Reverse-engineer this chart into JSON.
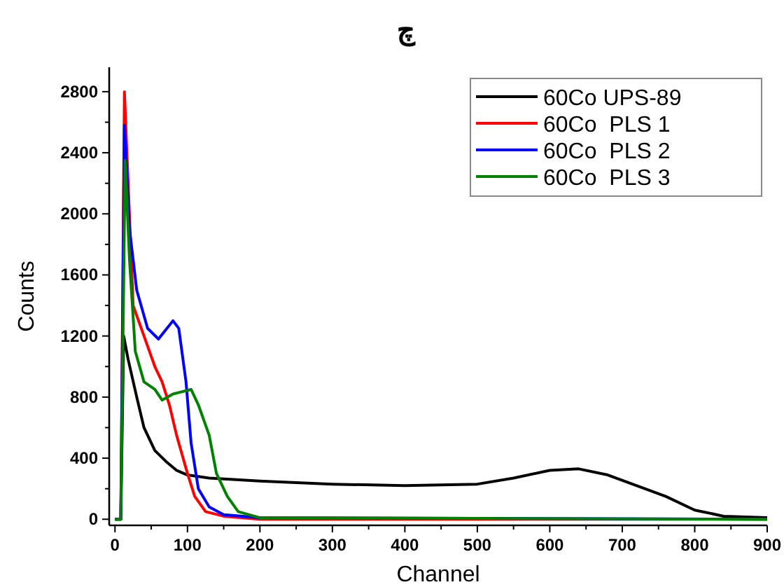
{
  "chart_data": {
    "type": "line",
    "title": "چ",
    "xlabel": "Channel",
    "ylabel": "Counts",
    "xlim": [
      -8,
      900
    ],
    "ylim": [
      -40,
      2960
    ],
    "xticks": [
      0,
      {
        "value": 50,
        "label": null
      },
      100,
      {
        "value": 150,
        "label": null
      },
      200,
      {
        "value": 250,
        "label": null
      },
      300,
      {
        "value": 350,
        "label": null
      },
      400,
      {
        "value": 450,
        "label": null
      },
      500,
      {
        "value": 550,
        "label": null
      },
      600,
      {
        "value": 650,
        "label": null
      },
      700,
      {
        "value": 750,
        "label": null
      },
      800,
      {
        "value": 850,
        "label": null
      },
      900
    ],
    "yticks": [
      0,
      {
        "value": 200,
        "label": null
      },
      400,
      {
        "value": 600,
        "label": null
      },
      800,
      {
        "value": 1000,
        "label": null
      },
      1200,
      {
        "value": 1400,
        "label": null
      },
      1600,
      {
        "value": 1800,
        "label": null
      },
      2000,
      {
        "value": 2200,
        "label": null
      },
      2400,
      {
        "value": 2600,
        "label": null
      },
      2800
    ],
    "grid": false,
    "legend": "top right",
    "marker": "none",
    "line_style": "solid",
    "series": [
      {
        "name": "60Co UPS-89",
        "color": "#000000",
        "x": [
          0,
          8,
          12,
          18,
          30,
          40,
          55,
          70,
          85,
          100,
          130,
          200,
          300,
          400,
          500,
          550,
          600,
          640,
          680,
          720,
          760,
          800,
          840,
          900
        ],
        "values": [
          0,
          0,
          1200,
          1050,
          800,
          600,
          450,
          380,
          320,
          290,
          270,
          250,
          230,
          220,
          230,
          270,
          320,
          330,
          290,
          220,
          150,
          60,
          20,
          10
        ]
      },
      {
        "name": "60Co  PLS 1",
        "color": "#ff0000",
        "x": [
          0,
          8,
          13,
          25,
          40,
          55,
          65,
          75,
          85,
          100,
          110,
          125,
          150,
          200,
          900
        ],
        "values": [
          0,
          0,
          2800,
          1400,
          1200,
          1000,
          900,
          750,
          550,
          300,
          150,
          50,
          20,
          0,
          0
        ]
      },
      {
        "name": "60Co  PLS 2",
        "color": "#0000ff",
        "x": [
          0,
          8,
          13,
          20,
          30,
          45,
          60,
          80,
          88,
          98,
          105,
          115,
          130,
          150,
          200,
          900
        ],
        "values": [
          0,
          0,
          2580,
          1900,
          1500,
          1250,
          1180,
          1300,
          1250,
          900,
          500,
          200,
          80,
          30,
          10,
          0
        ]
      },
      {
        "name": "60Co  PLS 3",
        "color": "#008000",
        "x": [
          0,
          8,
          14,
          20,
          28,
          40,
          55,
          65,
          80,
          105,
          115,
          130,
          140,
          155,
          170,
          200,
          900
        ],
        "values": [
          0,
          0,
          2350,
          1700,
          1100,
          900,
          850,
          780,
          820,
          850,
          750,
          550,
          300,
          150,
          50,
          10,
          0
        ]
      }
    ]
  }
}
